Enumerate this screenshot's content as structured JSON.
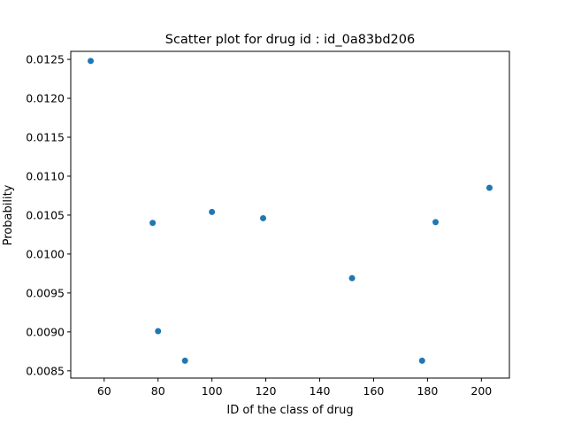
{
  "chart_data": {
    "type": "scatter",
    "title": "Scatter plot for drug id : id_0a83bd206",
    "xlabel": "ID of the class of drug",
    "ylabel": "Probability",
    "xlim": [
      47.6,
      210.4
    ],
    "ylim": [
      0.008407,
      0.012603
    ],
    "x_ticks": [
      {
        "value": 60,
        "label": "60"
      },
      {
        "value": 80,
        "label": "80"
      },
      {
        "value": 100,
        "label": "100"
      },
      {
        "value": 120,
        "label": "120"
      },
      {
        "value": 140,
        "label": "140"
      },
      {
        "value": 160,
        "label": "160"
      },
      {
        "value": 180,
        "label": "180"
      },
      {
        "value": 200,
        "label": "200"
      }
    ],
    "y_ticks": [
      {
        "value": 0.0085,
        "label": "0.0085"
      },
      {
        "value": 0.009,
        "label": "0.0090"
      },
      {
        "value": 0.0095,
        "label": "0.0095"
      },
      {
        "value": 0.01,
        "label": "0.0100"
      },
      {
        "value": 0.0105,
        "label": "0.0105"
      },
      {
        "value": 0.011,
        "label": "0.0110"
      },
      {
        "value": 0.0115,
        "label": "0.0115"
      },
      {
        "value": 0.012,
        "label": "0.0120"
      },
      {
        "value": 0.0125,
        "label": "0.0125"
      }
    ],
    "grid": false,
    "marker_color": "#1f77b4",
    "points": [
      {
        "x": 55,
        "y": 0.01248
      },
      {
        "x": 78,
        "y": 0.0104
      },
      {
        "x": 80,
        "y": 0.00901
      },
      {
        "x": 90,
        "y": 0.00863
      },
      {
        "x": 100,
        "y": 0.01054
      },
      {
        "x": 119,
        "y": 0.01046
      },
      {
        "x": 152,
        "y": 0.00969
      },
      {
        "x": 178,
        "y": 0.00863
      },
      {
        "x": 183,
        "y": 0.01041
      },
      {
        "x": 203,
        "y": 0.01085
      }
    ]
  }
}
